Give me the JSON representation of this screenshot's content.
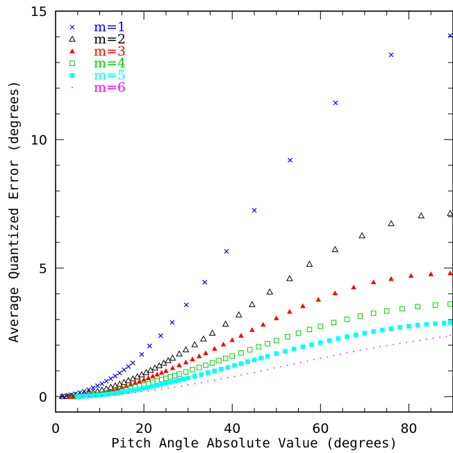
{
  "chart_data": {
    "type": "scatter",
    "title": "",
    "xlabel": "Pitch Angle Absolute Value (degrees)",
    "ylabel": "Average Quantized Error (degrees)",
    "xlim": [
      0,
      90
    ],
    "ylim": [
      -0.6,
      15
    ],
    "xticks": [
      0,
      20,
      40,
      60,
      80
    ],
    "yticks": [
      0,
      5,
      10,
      15
    ],
    "grid": false,
    "legend_position": "top-left",
    "series": [
      {
        "name": "m=1",
        "marker": "x",
        "color": "#0000ff",
        "x": [
          1.5,
          2.5,
          3.5,
          4.5,
          5.5,
          6.5,
          7.5,
          8.5,
          9.5,
          10.5,
          11.5,
          12.5,
          13.5,
          14.5,
          15.5,
          16.5,
          17.5,
          19.5,
          21.3,
          23.8,
          26.4,
          29.6,
          33.8,
          38.7,
          45.0,
          53.1,
          63.4,
          76.0,
          90.0
        ],
        "y": [
          0.01,
          0.03,
          0.07,
          0.11,
          0.16,
          0.21,
          0.27,
          0.34,
          0.42,
          0.5,
          0.6,
          0.7,
          0.8,
          0.92,
          1.04,
          1.17,
          1.31,
          1.64,
          1.97,
          2.37,
          2.89,
          3.57,
          4.45,
          5.65,
          7.25,
          9.2,
          11.43,
          13.3,
          14.05
        ]
      },
      {
        "name": "m=2",
        "marker": "triangle-open",
        "color": "#000000",
        "x": [
          1.5,
          2.5,
          3.5,
          4.5,
          5.5,
          6.5,
          7.5,
          8.5,
          9.5,
          10.5,
          11.5,
          12.5,
          13.5,
          14.5,
          15.5,
          16.5,
          17.5,
          18.5,
          19.5,
          20.5,
          21.5,
          22.5,
          23.5,
          24.5,
          25.5,
          26.5,
          28.0,
          29.5,
          31.5,
          33.5,
          35.5,
          38.5,
          41.5,
          44.5,
          48.5,
          53.0,
          57.5,
          63.3,
          69.4,
          76.0,
          82.8,
          90.0
        ],
        "y": [
          0.0,
          0.01,
          0.02,
          0.04,
          0.06,
          0.09,
          0.12,
          0.16,
          0.2,
          0.25,
          0.3,
          0.36,
          0.42,
          0.48,
          0.55,
          0.62,
          0.69,
          0.77,
          0.85,
          0.93,
          1.02,
          1.11,
          1.2,
          1.3,
          1.4,
          1.5,
          1.66,
          1.82,
          2.02,
          2.24,
          2.47,
          2.82,
          3.18,
          3.58,
          4.07,
          4.59,
          5.15,
          5.72,
          6.26,
          6.73,
          7.03,
          7.13
        ]
      },
      {
        "name": "m=3",
        "marker": "triangle-filled",
        "color": "#ff0000",
        "x": [
          3.0,
          4.0,
          5.0,
          6.0,
          7.0,
          8.0,
          9.0,
          10.0,
          11.0,
          12.0,
          13.0,
          14.0,
          15.0,
          16.0,
          17.0,
          18.0,
          19.0,
          20.0,
          21.0,
          22.0,
          23.0,
          24.0,
          25.0,
          26.5,
          28.0,
          29.5,
          31.0,
          32.5,
          34.0,
          36.0,
          38.0,
          40.0,
          42.0,
          44.5,
          47.0,
          50.0,
          53.0,
          56.0,
          59.5,
          63.3,
          67.5,
          72.0,
          76.0,
          80.5,
          85.0,
          90.0
        ],
        "y": [
          0.0,
          0.01,
          0.02,
          0.04,
          0.06,
          0.08,
          0.11,
          0.14,
          0.18,
          0.22,
          0.26,
          0.31,
          0.36,
          0.41,
          0.47,
          0.53,
          0.59,
          0.66,
          0.72,
          0.79,
          0.86,
          0.93,
          1.0,
          1.11,
          1.22,
          1.33,
          1.45,
          1.57,
          1.69,
          1.86,
          2.03,
          2.2,
          2.37,
          2.59,
          2.8,
          3.05,
          3.3,
          3.52,
          3.77,
          4.02,
          4.25,
          4.45,
          4.58,
          4.7,
          4.76,
          4.8
        ]
      },
      {
        "name": "m=4",
        "marker": "square-open",
        "color": "#00cc00",
        "x": [
          4.0,
          5.0,
          6.0,
          7.0,
          8.0,
          9.0,
          10.0,
          11.0,
          12.0,
          13.0,
          14.0,
          15.0,
          16.0,
          17.0,
          18.0,
          19.0,
          20.0,
          21.0,
          22.0,
          23.0,
          24.0,
          25.0,
          26.0,
          27.0,
          28.0,
          29.5,
          31.0,
          32.5,
          34.0,
          35.5,
          37.0,
          38.5,
          40.0,
          42.0,
          44.0,
          46.0,
          48.0,
          50.0,
          52.5,
          55.0,
          57.5,
          60.0,
          63.0,
          66.0,
          69.0,
          72.0,
          75.0,
          78.5,
          82.0,
          86.0,
          90.0
        ],
        "y": [
          0.0,
          0.01,
          0.02,
          0.03,
          0.05,
          0.07,
          0.09,
          0.12,
          0.15,
          0.18,
          0.21,
          0.25,
          0.29,
          0.33,
          0.37,
          0.42,
          0.46,
          0.51,
          0.56,
          0.61,
          0.66,
          0.71,
          0.77,
          0.82,
          0.88,
          0.96,
          1.05,
          1.13,
          1.22,
          1.31,
          1.4,
          1.49,
          1.58,
          1.7,
          1.82,
          1.94,
          2.06,
          2.18,
          2.33,
          2.47,
          2.61,
          2.74,
          2.88,
          3.01,
          3.13,
          3.24,
          3.33,
          3.42,
          3.5,
          3.56,
          3.6
        ]
      },
      {
        "name": "m=5",
        "marker": "square-filled",
        "color": "#00ffff",
        "x": [
          5.0,
          6.0,
          7.0,
          8.0,
          9.0,
          10.0,
          11.0,
          12.0,
          13.0,
          14.0,
          15.0,
          16.0,
          17.0,
          18.0,
          19.0,
          20.0,
          21.0,
          22.0,
          23.0,
          24.0,
          25.0,
          26.0,
          27.0,
          28.0,
          29.0,
          30.0,
          31.5,
          33.0,
          34.5,
          36.0,
          37.5,
          39.0,
          40.5,
          42.0,
          43.5,
          45.0,
          46.5,
          48.0,
          50.0,
          52.0,
          54.0,
          56.0,
          58.0,
          60.0,
          62.0,
          64.0,
          66.0,
          68.0,
          70.0,
          72.0,
          74.0,
          76.0,
          78.0,
          80.0,
          82.0,
          84.0,
          86.0,
          88.0,
          90.0
        ],
        "y": [
          0.0,
          0.01,
          0.02,
          0.03,
          0.04,
          0.06,
          0.08,
          0.1,
          0.12,
          0.14,
          0.17,
          0.2,
          0.23,
          0.26,
          0.29,
          0.33,
          0.36,
          0.4,
          0.44,
          0.48,
          0.52,
          0.56,
          0.6,
          0.64,
          0.68,
          0.73,
          0.79,
          0.86,
          0.93,
          1.0,
          1.07,
          1.14,
          1.21,
          1.28,
          1.36,
          1.43,
          1.5,
          1.57,
          1.67,
          1.76,
          1.85,
          1.94,
          2.02,
          2.1,
          2.18,
          2.26,
          2.33,
          2.4,
          2.47,
          2.53,
          2.59,
          2.64,
          2.69,
          2.74,
          2.78,
          2.81,
          2.84,
          2.86,
          2.88
        ]
      },
      {
        "name": "m=6",
        "marker": "dot",
        "color": "#ff00ff",
        "x": [
          6.0,
          7.5,
          9.0,
          10.5,
          12.0,
          13.5,
          15.0,
          16.5,
          18.0,
          19.5,
          21.0,
          22.5,
          24.0,
          25.5,
          27.0,
          28.5,
          30.0,
          31.5,
          33.0,
          34.5,
          36.0,
          37.5,
          39.0,
          40.5,
          42.0,
          43.5,
          45.0,
          46.5,
          48.0,
          49.5,
          51.0,
          52.5,
          54.0,
          55.5,
          57.0,
          58.5,
          60.0,
          61.5,
          63.0,
          64.5,
          66.0,
          67.5,
          69.0,
          70.5,
          72.0,
          73.5,
          75.0,
          76.5,
          78.0,
          79.5,
          81.0,
          82.5,
          84.0,
          85.5,
          87.0,
          88.5,
          90.0
        ],
        "y": [
          0.0,
          0.01,
          0.02,
          0.04,
          0.06,
          0.08,
          0.11,
          0.13,
          0.16,
          0.19,
          0.22,
          0.26,
          0.29,
          0.33,
          0.37,
          0.41,
          0.45,
          0.5,
          0.54,
          0.59,
          0.64,
          0.69,
          0.74,
          0.79,
          0.84,
          0.89,
          0.94,
          1.0,
          1.05,
          1.11,
          1.16,
          1.22,
          1.27,
          1.33,
          1.38,
          1.44,
          1.49,
          1.54,
          1.6,
          1.65,
          1.7,
          1.75,
          1.8,
          1.85,
          1.89,
          1.94,
          1.98,
          2.03,
          2.07,
          2.11,
          2.15,
          2.19,
          2.23,
          2.27,
          2.31,
          2.34,
          2.38
        ]
      }
    ]
  }
}
